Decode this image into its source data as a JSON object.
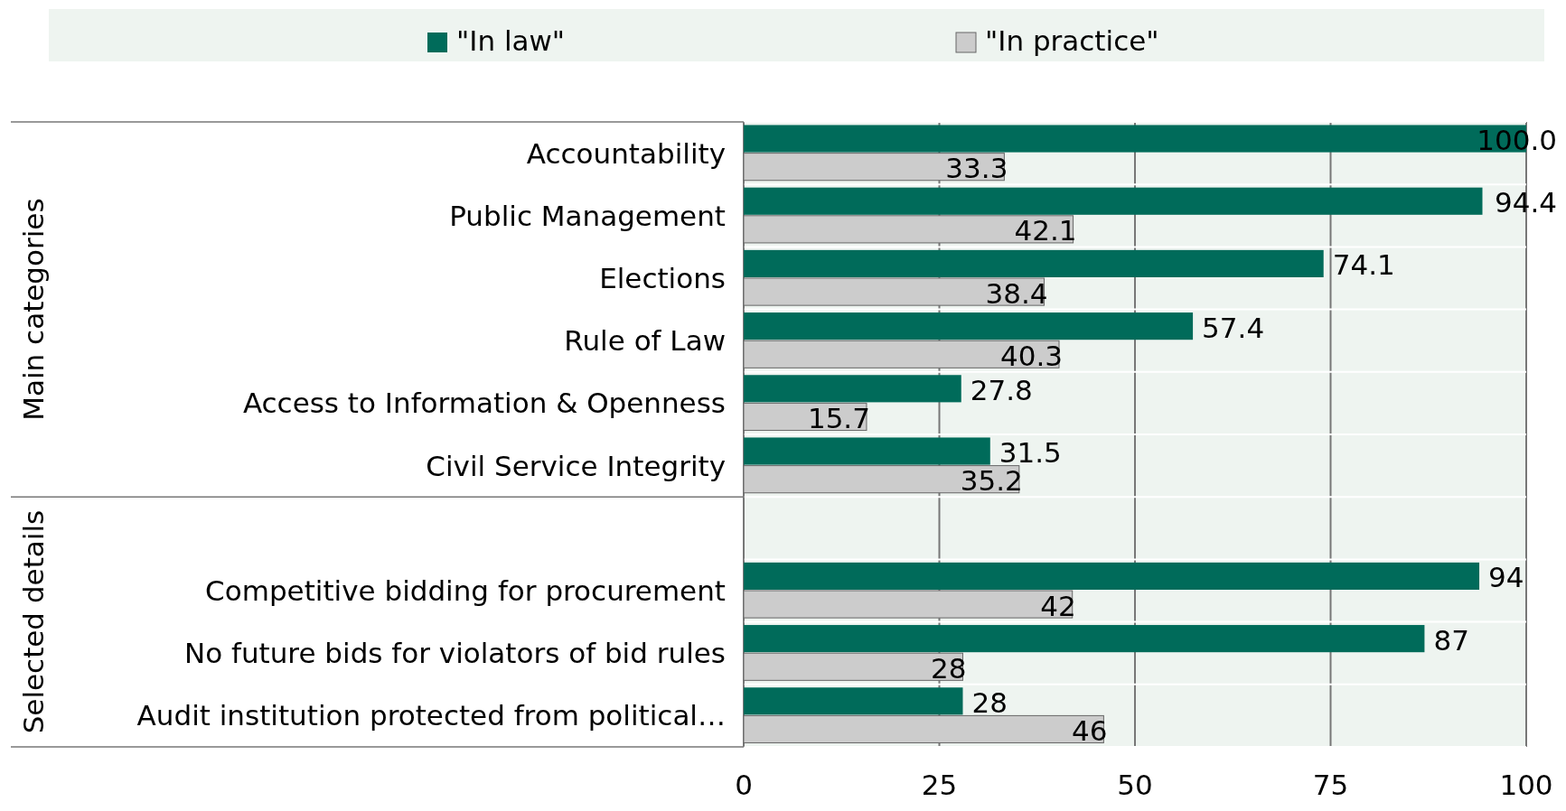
{
  "chart_data": {
    "type": "bar",
    "orientation": "horizontal",
    "categories": [
      "Accountability",
      "Public Management",
      "Elections",
      "Rule of Law",
      "Access to Information & Openness",
      "Civil Service Integrity",
      null,
      "Competitive bidding for procurement",
      "No future bids for violators of bid rules",
      "Audit institution protected from political…"
    ],
    "series": [
      {
        "name": "\"In law\"",
        "color": "#006b5a",
        "values": [
          100.0,
          94.4,
          74.1,
          57.4,
          27.8,
          31.5,
          null,
          94,
          87,
          28
        ],
        "value_labels": [
          "100.0",
          "94.4",
          "74.1",
          "57.4",
          "27.8",
          "31.5",
          null,
          "94",
          "87",
          "28"
        ]
      },
      {
        "name": "\"In practice\"",
        "color": "#cccccc",
        "values": [
          33.3,
          42.1,
          38.4,
          40.3,
          15.7,
          35.2,
          null,
          42,
          28,
          46
        ],
        "value_labels": [
          "33.3",
          "42.1",
          "38.4",
          "40.3",
          "15.7",
          "35.2",
          null,
          "42",
          "28",
          "46"
        ]
      }
    ],
    "xlim": [
      0,
      100
    ],
    "xticks": [
      0,
      25,
      50,
      75,
      100
    ],
    "grid": "x",
    "legend": "top",
    "annotations": [
      "Main categories",
      "Selected details"
    ]
  }
}
